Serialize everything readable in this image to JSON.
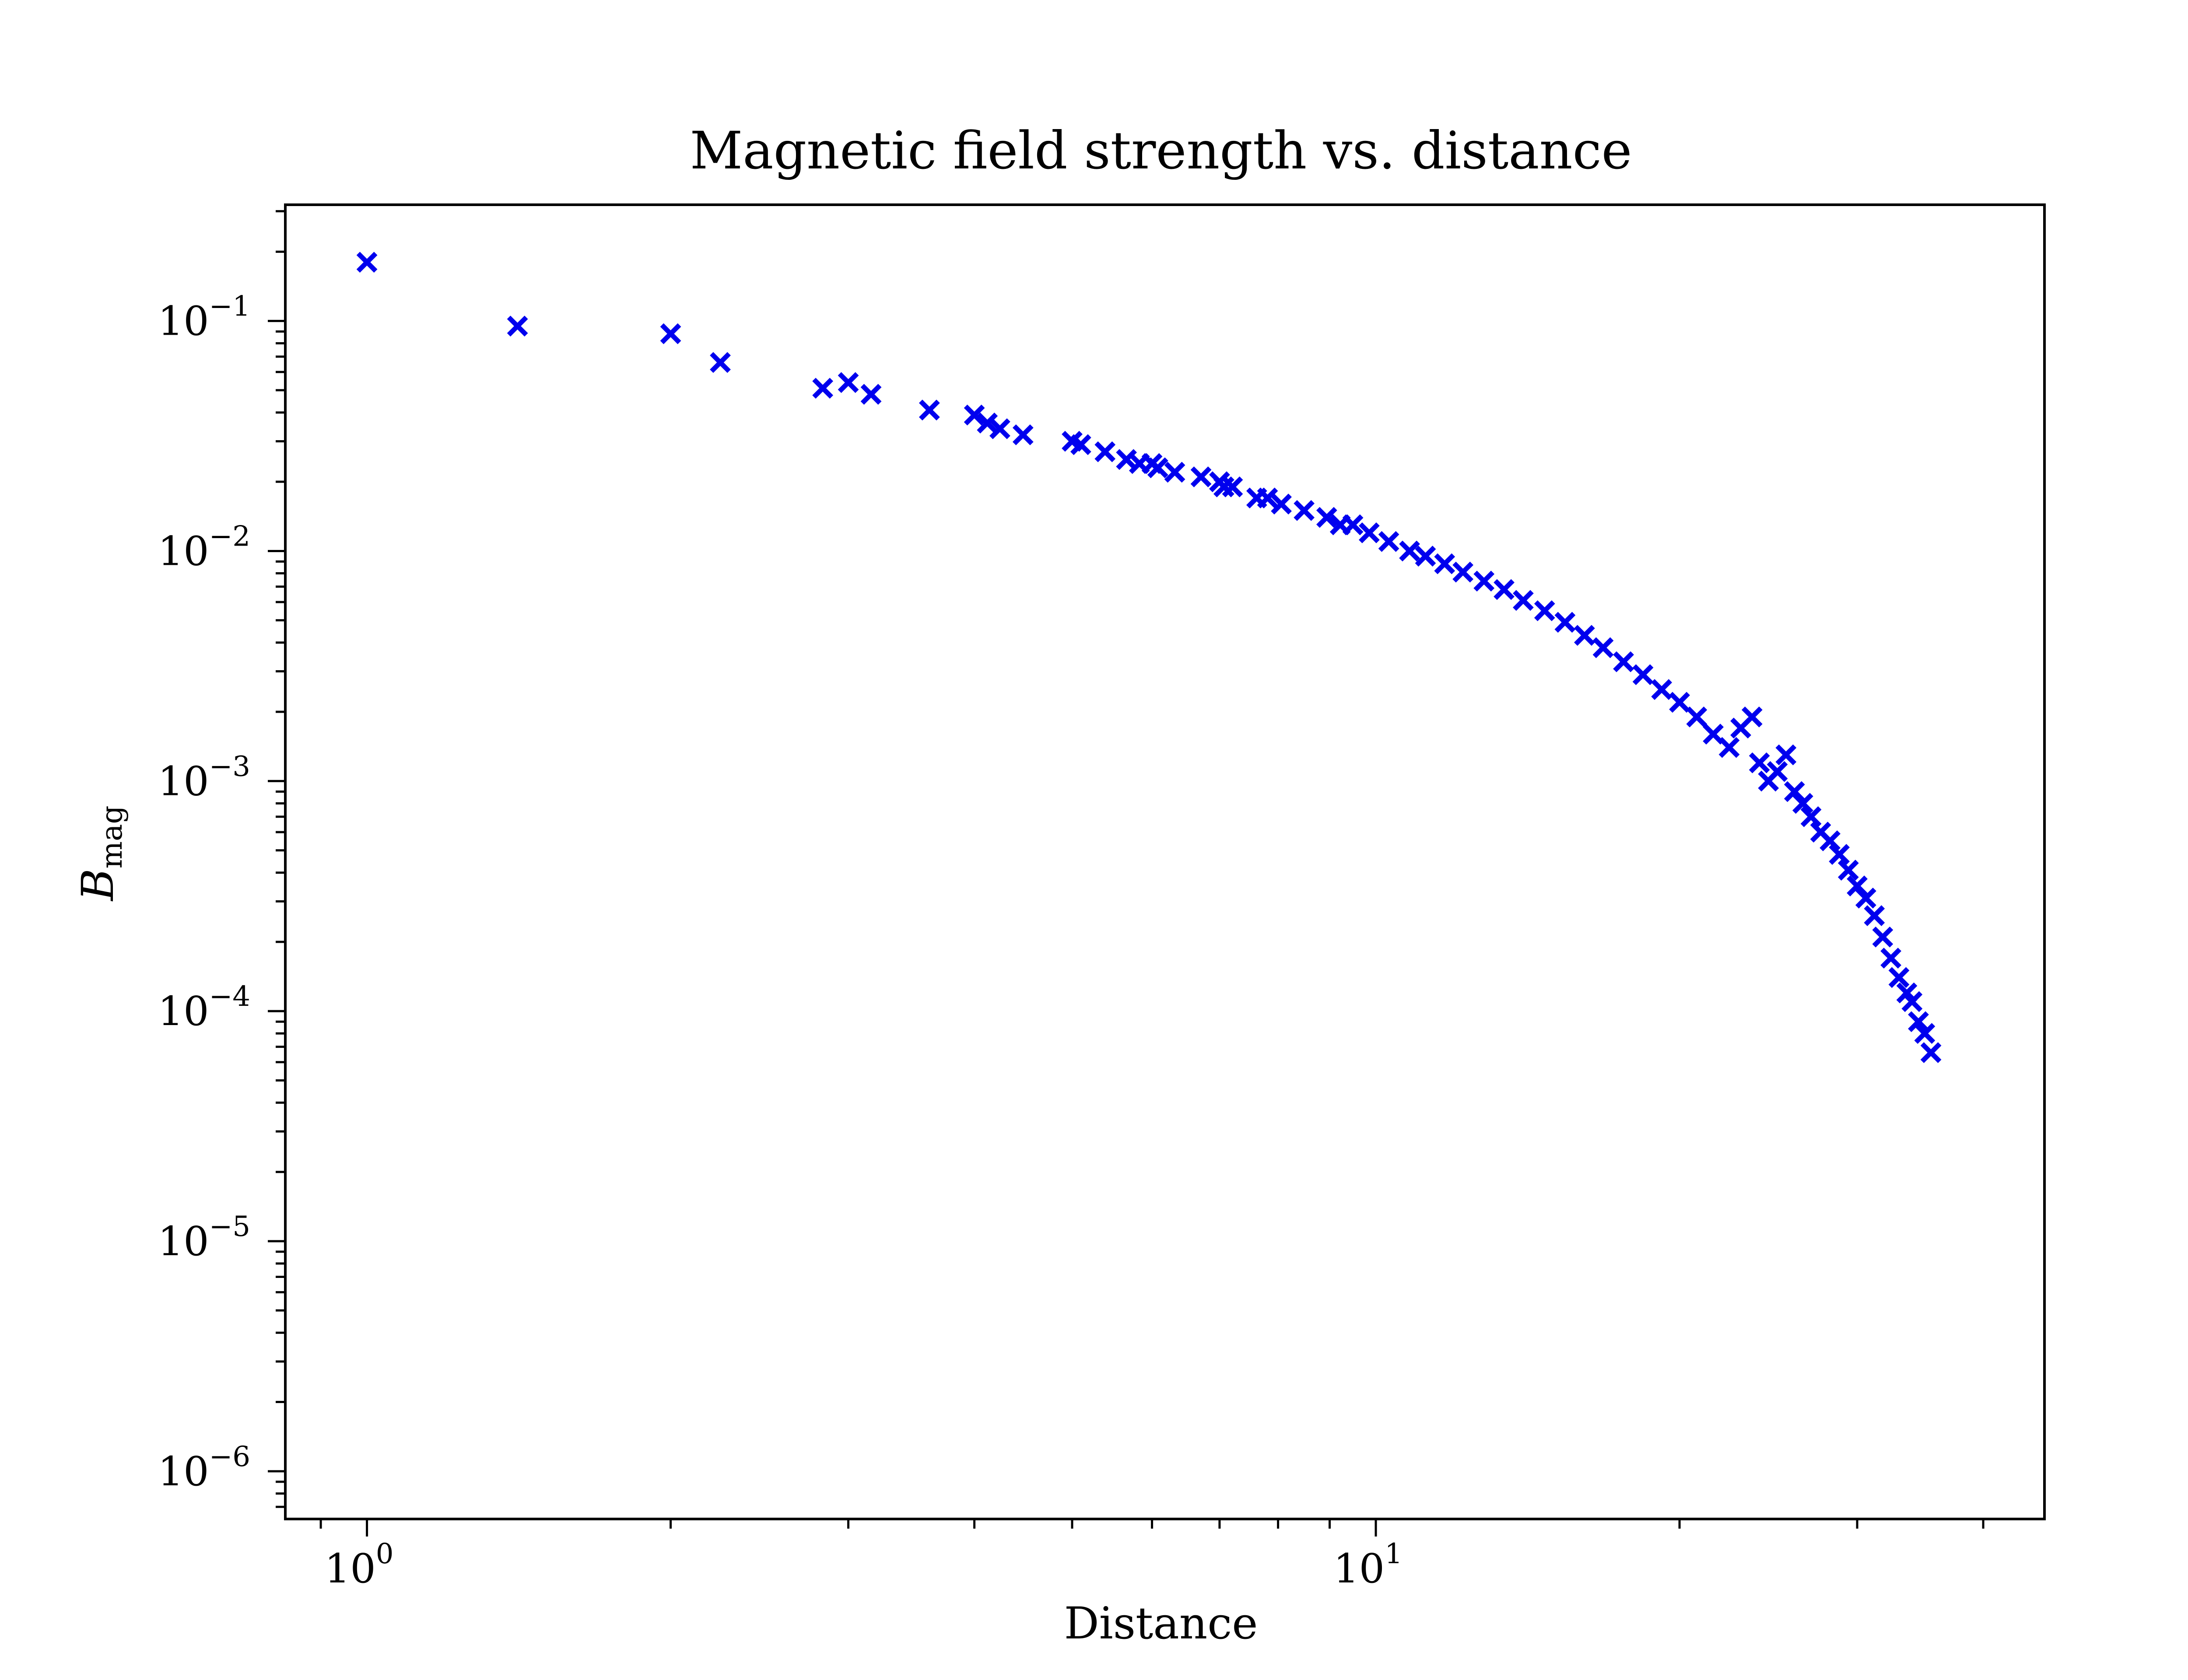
{
  "chart_data": {
    "type": "scatter",
    "title": "Magnetic field strength vs. distance",
    "xlabel": "Distance",
    "ylabel": "B",
    "ylabel_subscript": "mag",
    "xscale": "log",
    "yscale": "log",
    "xlim": [
      0.83,
      46
    ],
    "ylim": [
      6.2e-07,
      0.32
    ],
    "grid": false,
    "legend": null,
    "marker": "x",
    "color": "#0000ee",
    "x_ticks": [
      {
        "value": 1,
        "base": "10",
        "exp": "0"
      },
      {
        "value": 10,
        "base": "10",
        "exp": "1"
      }
    ],
    "y_ticks": [
      {
        "value": 0.1,
        "base": "10",
        "exp": "−1"
      },
      {
        "value": 0.01,
        "base": "10",
        "exp": "−2"
      },
      {
        "value": 0.001,
        "base": "10",
        "exp": "−3"
      },
      {
        "value": 0.0001,
        "base": "10",
        "exp": "−4"
      },
      {
        "value": 1e-05,
        "base": "10",
        "exp": "−5"
      },
      {
        "value": 1e-06,
        "base": "10",
        "exp": "−6"
      }
    ],
    "series": [
      {
        "x": [
          1.0,
          1.41,
          2.0,
          2.24,
          2.83,
          3.0,
          3.16,
          3.61,
          4.0,
          4.12,
          4.24,
          4.47,
          5.0,
          5.1,
          5.39,
          5.66,
          5.83,
          6.0,
          6.08,
          6.32,
          6.71,
          7.0,
          7.07,
          7.21,
          7.62,
          7.81,
          8.06,
          8.49,
          8.94,
          9.22,
          9.49,
          9.85,
          10.3,
          10.8,
          11.2,
          11.7,
          12.2,
          12.8,
          13.4,
          14.0,
          14.7,
          15.4,
          16.1,
          16.8,
          17.6,
          18.4,
          19.2,
          20.0,
          20.8,
          21.6,
          22.4,
          23.0,
          23.6,
          24.0,
          24.5,
          25.0,
          25.5,
          26.0,
          26.5,
          27.0,
          27.6,
          28.2,
          28.8,
          29.4,
          30.0,
          30.6,
          31.2,
          31.8,
          32.4,
          33.0,
          33.6,
          34.0,
          34.5,
          35.0,
          35.5
        ],
        "y": [
          0.18,
          0.095,
          0.088,
          0.066,
          0.051,
          0.054,
          0.048,
          0.041,
          0.039,
          0.036,
          0.034,
          0.032,
          0.03,
          0.029,
          0.027,
          0.025,
          0.024,
          0.024,
          0.023,
          0.022,
          0.021,
          0.02,
          0.019,
          0.019,
          0.017,
          0.017,
          0.016,
          0.015,
          0.014,
          0.013,
          0.013,
          0.012,
          0.011,
          0.01,
          0.0095,
          0.0088,
          0.0081,
          0.0074,
          0.0068,
          0.0061,
          0.0055,
          0.0049,
          0.0043,
          0.0038,
          0.0033,
          0.0029,
          0.0025,
          0.0022,
          0.0019,
          0.0016,
          0.0014,
          0.0017,
          0.0019,
          0.0012,
          0.001,
          0.0011,
          0.0013,
          0.0009,
          0.0008,
          0.0007,
          0.0006,
          0.00055,
          0.00048,
          0.00041,
          0.00035,
          0.00031,
          0.00026,
          0.00021,
          0.00017,
          0.00014,
          0.00012,
          0.00011,
          9e-05,
          8e-05,
          6.6e-05
        ]
      }
    ]
  }
}
